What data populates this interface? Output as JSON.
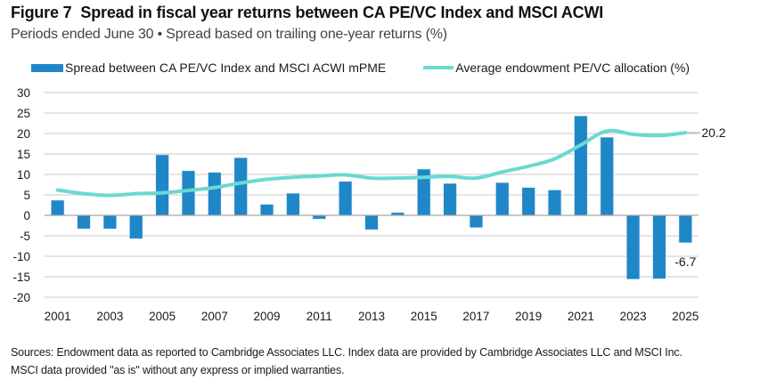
{
  "header": {
    "figure_label": "Figure 7",
    "title": "Spread in fiscal year returns between CA PE/VC Index and MSCI ACWI",
    "subtitle": "Periods ended June 30 • Spread based on trailing one-year returns (%)"
  },
  "colors": {
    "bar": "#1f87c8",
    "line": "#6ad9d0",
    "grid": "#c8c8c8",
    "axis": "#a6a6a6"
  },
  "chart_data": {
    "type": "bar",
    "title": "Spread in fiscal year returns between CA PE/VC Index and MSCI ACWI",
    "subtitle": "Periods ended June 30 • Spread based on trailing one-year returns (%)",
    "xlabel": "",
    "ylabel": "",
    "ylim": [
      -20,
      30
    ],
    "yticks": [
      30,
      25,
      20,
      15,
      10,
      5,
      0,
      -5,
      -10,
      -15,
      -20
    ],
    "grid": true,
    "legend_position": "top",
    "categories": [
      2001,
      2002,
      2003,
      2004,
      2005,
      2006,
      2007,
      2008,
      2009,
      2010,
      2011,
      2012,
      2013,
      2014,
      2015,
      2016,
      2017,
      2018,
      2019,
      2020,
      2021,
      2022,
      2023,
      2024,
      2025
    ],
    "xtick_labels": [
      "2001",
      "2003",
      "2005",
      "2007",
      "2009",
      "2011",
      "2013",
      "2015",
      "2017",
      "2019",
      "2021",
      "2023",
      "2025"
    ],
    "series": [
      {
        "name": "Spread between CA PE/VC Index and MSCI ACWI mPME",
        "type": "bar",
        "values": [
          3.7,
          -3.3,
          -3.3,
          -5.7,
          14.8,
          10.9,
          10.5,
          14.1,
          2.7,
          5.4,
          -0.9,
          8.3,
          -3.5,
          0.7,
          11.3,
          7.8,
          -3.0,
          8.0,
          6.8,
          6.2,
          24.3,
          19.1,
          -15.6,
          -15.5,
          -6.7
        ]
      },
      {
        "name": "Average endowment PE/VC allocation (%)",
        "type": "line",
        "values": [
          6.2,
          5.3,
          4.9,
          5.3,
          5.5,
          6.1,
          6.8,
          7.9,
          8.8,
          9.3,
          9.6,
          9.9,
          9.1,
          9.1,
          9.3,
          9.5,
          9.1,
          10.6,
          12.0,
          13.8,
          17.2,
          20.6,
          19.8,
          19.5,
          20.2
        ]
      }
    ],
    "annotations": [
      {
        "series": 0,
        "index": 24,
        "text": "-6.7",
        "placement": "below-bar"
      },
      {
        "series": 1,
        "index": 24,
        "text": "20.2",
        "placement": "right-with-leader"
      }
    ]
  },
  "footer": {
    "line1": "Sources: Endowment data as reported to Cambridge Associates LLC. Index data are provided by Cambridge Associates LLC and MSCI Inc.",
    "line2": "MSCI data provided \"as is\" without any express or implied warranties."
  }
}
